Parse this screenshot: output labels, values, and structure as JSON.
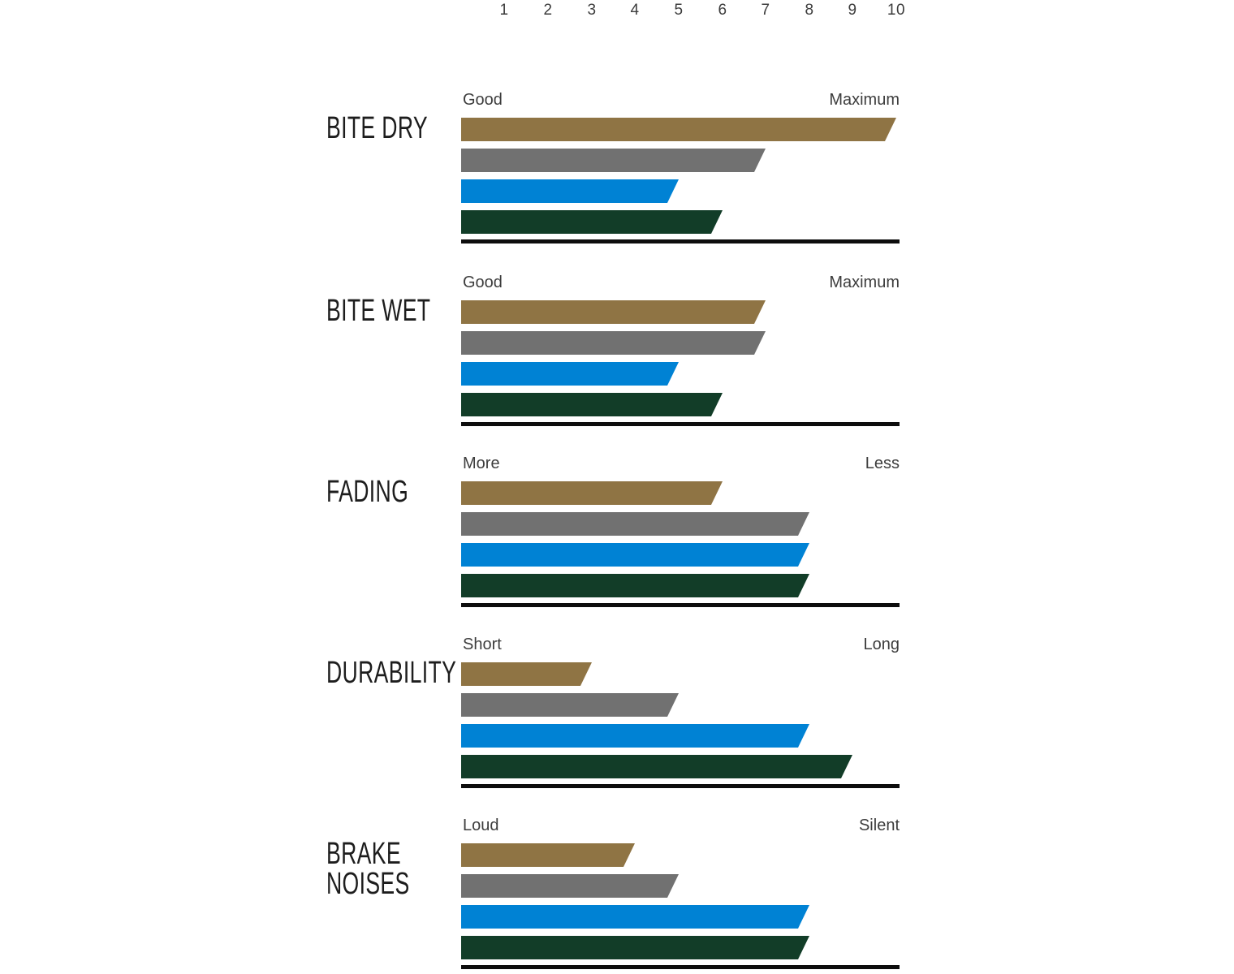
{
  "chart_data": {
    "type": "bar",
    "orientation": "horizontal",
    "title": "",
    "axis_range": [
      0,
      10
    ],
    "scale_ticks": [
      "1",
      "2",
      "3",
      "4",
      "5",
      "6",
      "7",
      "8",
      "9",
      "10"
    ],
    "legend": "none",
    "series": [
      {
        "name": "bronze",
        "color": "#8F7444"
      },
      {
        "name": "gray",
        "color": "#717171"
      },
      {
        "name": "blue",
        "color": "#0082D4"
      },
      {
        "name": "green",
        "color": "#123D28"
      }
    ],
    "sections": [
      {
        "label": "BITE DRY",
        "left_label": "Good",
        "right_label": "Maximum",
        "values": [
          10,
          7,
          5,
          6
        ]
      },
      {
        "label": "BITE WET",
        "left_label": "Good",
        "right_label": "Maximum",
        "values": [
          7,
          7,
          5,
          6
        ]
      },
      {
        "label": "FADING",
        "left_label": "More",
        "right_label": "Less",
        "values": [
          6,
          8,
          8,
          8
        ]
      },
      {
        "label": "DURABILITY",
        "left_label": "Short",
        "right_label": "Long",
        "values": [
          3,
          5,
          8,
          9
        ]
      },
      {
        "label": "BRAKE\nNOISES",
        "left_label": "Loud",
        "right_label": "Silent",
        "values": [
          4,
          5,
          8,
          8
        ]
      }
    ]
  }
}
